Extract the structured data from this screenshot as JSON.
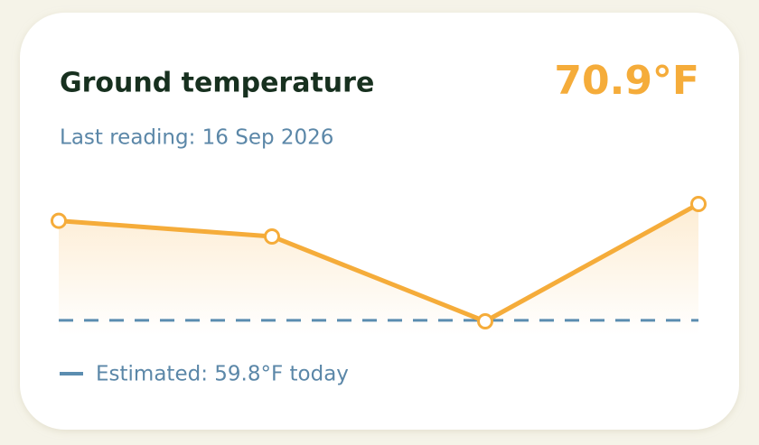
{
  "chart_data": {
    "type": "line",
    "title": "Ground temperature",
    "headline": "70.9°F",
    "subtitle": "Last reading: 16 Sep 2026",
    "values": [
      69.3,
      67.8,
      59.7,
      70.9
    ],
    "color": "#f5ac3a",
    "reference": {
      "value": 59.8,
      "label": "Estimated: 59.8°F today",
      "color": "#5b8db0"
    }
  }
}
